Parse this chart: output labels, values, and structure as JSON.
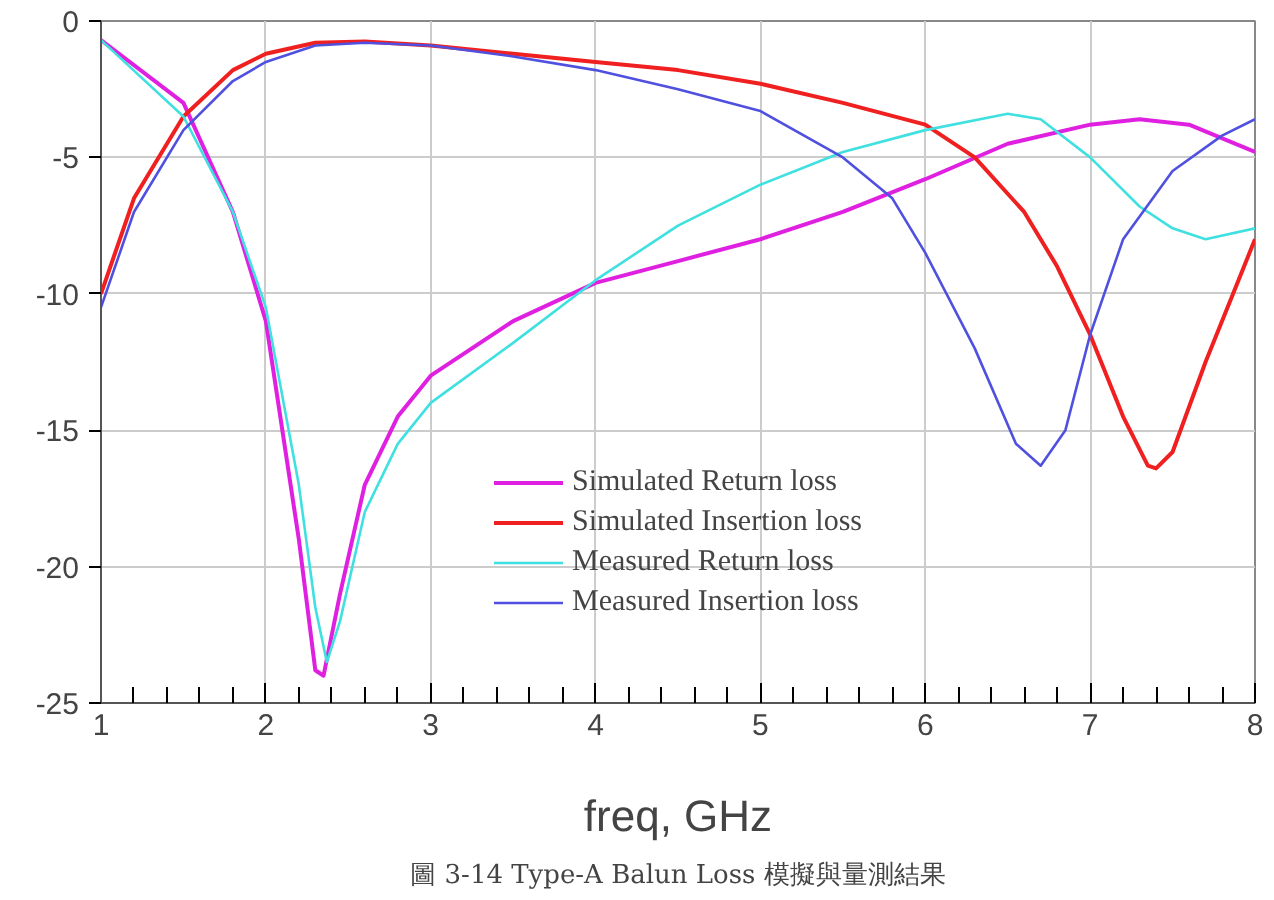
{
  "chart_data": {
    "type": "line",
    "xlabel": "freq, GHz",
    "annotations": [
      "圖 3-14 Type-A Balun Loss 模擬與量測結果"
    ],
    "xlim": [
      1,
      8
    ],
    "ylim": [
      -25,
      0
    ],
    "xticks": [
      1,
      2,
      3,
      4,
      5,
      6,
      7,
      8
    ],
    "yticks": [
      -25,
      -20,
      -15,
      -10,
      -5,
      0
    ],
    "grid": true,
    "legend": "bottom",
    "line_style": "solid",
    "series": [
      {
        "name": "Simulated Return loss",
        "color": "#e020e0",
        "x": [
          1,
          1.5,
          1.8,
          2.0,
          2.2,
          2.3,
          2.35,
          2.45,
          2.6,
          2.8,
          3,
          3.5,
          4,
          4.5,
          5,
          5.5,
          6,
          6.5,
          7,
          7.3,
          7.6,
          8
        ],
        "values": [
          -0.7,
          -3,
          -7,
          -11,
          -19,
          -23.8,
          -24,
          -21,
          -17,
          -14.5,
          -13,
          -11,
          -9.6,
          -8.8,
          -8,
          -7,
          -5.8,
          -4.5,
          -3.8,
          -3.6,
          -3.8,
          -4.8
        ]
      },
      {
        "name": "Simulated Insertion loss",
        "color": "#f02020",
        "x": [
          1,
          1.2,
          1.5,
          1.8,
          2,
          2.3,
          2.6,
          3,
          3.5,
          4,
          4.5,
          5,
          5.5,
          6,
          6.3,
          6.6,
          6.8,
          7.0,
          7.2,
          7.35,
          7.4,
          7.5,
          7.7,
          7.9,
          8
        ],
        "values": [
          -10,
          -6.5,
          -3.5,
          -1.8,
          -1.2,
          -0.8,
          -0.75,
          -0.9,
          -1.2,
          -1.5,
          -1.8,
          -2.3,
          -3,
          -3.8,
          -5,
          -7,
          -9,
          -11.5,
          -14.5,
          -16.3,
          -16.4,
          -15.8,
          -12.5,
          -9.5,
          -8
        ]
      },
      {
        "name": "Measured Return loss",
        "color": "#40e0e0",
        "x": [
          1,
          1.5,
          1.8,
          2.0,
          2.2,
          2.3,
          2.37,
          2.45,
          2.6,
          2.8,
          3,
          3.5,
          4,
          4.5,
          5,
          5.5,
          6,
          6.5,
          6.7,
          7,
          7.3,
          7.5,
          7.7,
          8
        ],
        "values": [
          -0.7,
          -3.5,
          -7,
          -10.5,
          -17,
          -21.5,
          -23.5,
          -22,
          -18,
          -15.5,
          -14,
          -11.8,
          -9.5,
          -7.5,
          -6,
          -4.8,
          -4,
          -3.4,
          -3.6,
          -5,
          -6.8,
          -7.6,
          -8,
          -7.6
        ]
      },
      {
        "name": "Measured Insertion loss",
        "color": "#5050e0",
        "x": [
          1,
          1.2,
          1.5,
          1.8,
          2,
          2.3,
          2.6,
          3,
          3.5,
          4,
          4.5,
          5,
          5.5,
          5.8,
          6,
          6.3,
          6.55,
          6.7,
          6.85,
          7.0,
          7.2,
          7.5,
          7.8,
          8
        ],
        "values": [
          -10.5,
          -7,
          -4,
          -2.2,
          -1.5,
          -0.9,
          -0.8,
          -0.9,
          -1.3,
          -1.8,
          -2.5,
          -3.3,
          -5,
          -6.5,
          -8.5,
          -12,
          -15.5,
          -16.3,
          -15,
          -11.5,
          -8,
          -5.5,
          -4.2,
          -3.6
        ]
      }
    ]
  }
}
